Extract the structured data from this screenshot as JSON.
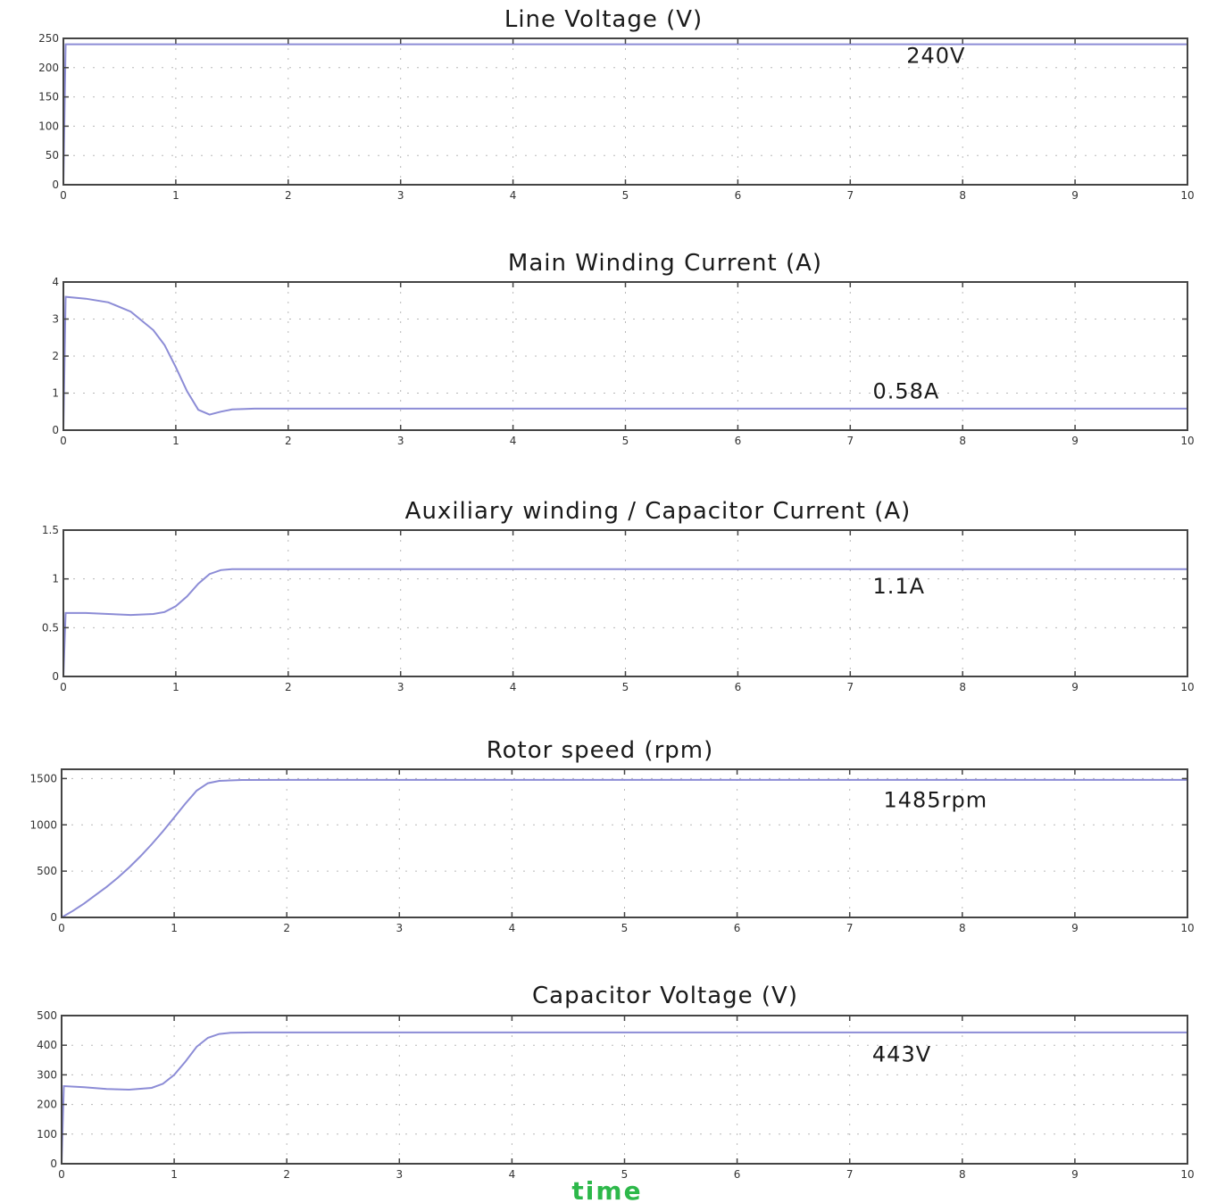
{
  "chart_data": [
    {
      "type": "line",
      "title": "Line Voltage (V)",
      "xlim": [
        0,
        10
      ],
      "ylim": [
        0,
        250
      ],
      "xticks": [
        0,
        1,
        2,
        3,
        4,
        5,
        6,
        7,
        8,
        9,
        10
      ],
      "yticks": [
        0,
        50,
        100,
        150,
        200,
        250
      ],
      "grid": true,
      "series": [
        {
          "color": "#8c8cd6",
          "x": [
            0,
            0.02,
            10
          ],
          "y": [
            0,
            240,
            240
          ]
        }
      ],
      "annotations": [
        {
          "text": "240V",
          "x": 7.5,
          "y": 208
        }
      ]
    },
    {
      "type": "line",
      "title": "Main Winding Current (A)",
      "xlim": [
        0,
        10
      ],
      "ylim": [
        0,
        4
      ],
      "xticks": [
        0,
        1,
        2,
        3,
        4,
        5,
        6,
        7,
        8,
        9,
        10
      ],
      "yticks": [
        0,
        1,
        2,
        3,
        4
      ],
      "grid": true,
      "series": [
        {
          "color": "#8c8cd6",
          "x": [
            0,
            0.02,
            0.2,
            0.4,
            0.6,
            0.8,
            0.9,
            1.0,
            1.1,
            1.2,
            1.3,
            1.4,
            1.5,
            1.7,
            2.0,
            10
          ],
          "y": [
            0,
            3.6,
            3.55,
            3.45,
            3.2,
            2.7,
            2.3,
            1.7,
            1.05,
            0.55,
            0.42,
            0.5,
            0.56,
            0.58,
            0.58,
            0.58
          ]
        }
      ],
      "annotations": [
        {
          "text": "0.58A",
          "x": 7.2,
          "y": 0.85
        }
      ]
    },
    {
      "type": "line",
      "title": "Auxiliary winding / Capacitor Current (A)",
      "xlim": [
        0,
        10
      ],
      "ylim": [
        0,
        1.5
      ],
      "xticks": [
        0,
        1,
        2,
        3,
        4,
        5,
        6,
        7,
        8,
        9,
        10
      ],
      "yticks": [
        0,
        0.5,
        1,
        1.5
      ],
      "grid": true,
      "series": [
        {
          "color": "#8c8cd6",
          "x": [
            0,
            0.02,
            0.2,
            0.4,
            0.6,
            0.8,
            0.9,
            1.0,
            1.1,
            1.2,
            1.3,
            1.4,
            1.5,
            1.7,
            2.0,
            10
          ],
          "y": [
            0,
            0.65,
            0.65,
            0.64,
            0.63,
            0.64,
            0.66,
            0.72,
            0.82,
            0.95,
            1.05,
            1.09,
            1.1,
            1.1,
            1.1,
            1.1
          ]
        }
      ],
      "annotations": [
        {
          "text": "1.1A",
          "x": 7.2,
          "y": 0.85
        }
      ]
    },
    {
      "type": "line",
      "title": "Rotor speed (rpm)",
      "xlim": [
        0,
        10
      ],
      "ylim": [
        0,
        1600
      ],
      "xticks": [
        0,
        1,
        2,
        3,
        4,
        5,
        6,
        7,
        8,
        9,
        10
      ],
      "yticks": [
        0,
        500,
        1000,
        1500
      ],
      "grid": true,
      "series": [
        {
          "color": "#8c8cd6",
          "x": [
            0,
            0.1,
            0.2,
            0.3,
            0.4,
            0.5,
            0.6,
            0.7,
            0.8,
            0.9,
            1.0,
            1.1,
            1.2,
            1.3,
            1.4,
            1.6,
            2.0,
            10
          ],
          "y": [
            0,
            70,
            150,
            240,
            330,
            430,
            540,
            660,
            790,
            930,
            1080,
            1230,
            1370,
            1450,
            1475,
            1484,
            1485,
            1485
          ]
        }
      ],
      "annotations": [
        {
          "text": "1485rpm",
          "x": 7.3,
          "y": 1190
        }
      ]
    },
    {
      "type": "line",
      "title": "Capacitor Voltage (V)",
      "xlabel": "time",
      "xlim": [
        0,
        10
      ],
      "ylim": [
        0,
        500
      ],
      "xticks": [
        0,
        1,
        2,
        3,
        4,
        5,
        6,
        7,
        8,
        9,
        10
      ],
      "yticks": [
        0,
        100,
        200,
        300,
        400,
        500
      ],
      "grid": true,
      "series": [
        {
          "color": "#8c8cd6",
          "x": [
            0,
            0.02,
            0.2,
            0.4,
            0.6,
            0.8,
            0.9,
            1.0,
            1.1,
            1.2,
            1.3,
            1.4,
            1.5,
            1.7,
            2.0,
            10
          ],
          "y": [
            0,
            262,
            258,
            252,
            250,
            256,
            270,
            300,
            345,
            395,
            425,
            438,
            442,
            443,
            443,
            443
          ]
        }
      ],
      "annotations": [
        {
          "text": "443V",
          "x": 7.2,
          "y": 345
        }
      ]
    }
  ],
  "colors": {
    "xlabel": "#2db84a",
    "frame": "#444444",
    "grid": "#b8b8b8"
  }
}
